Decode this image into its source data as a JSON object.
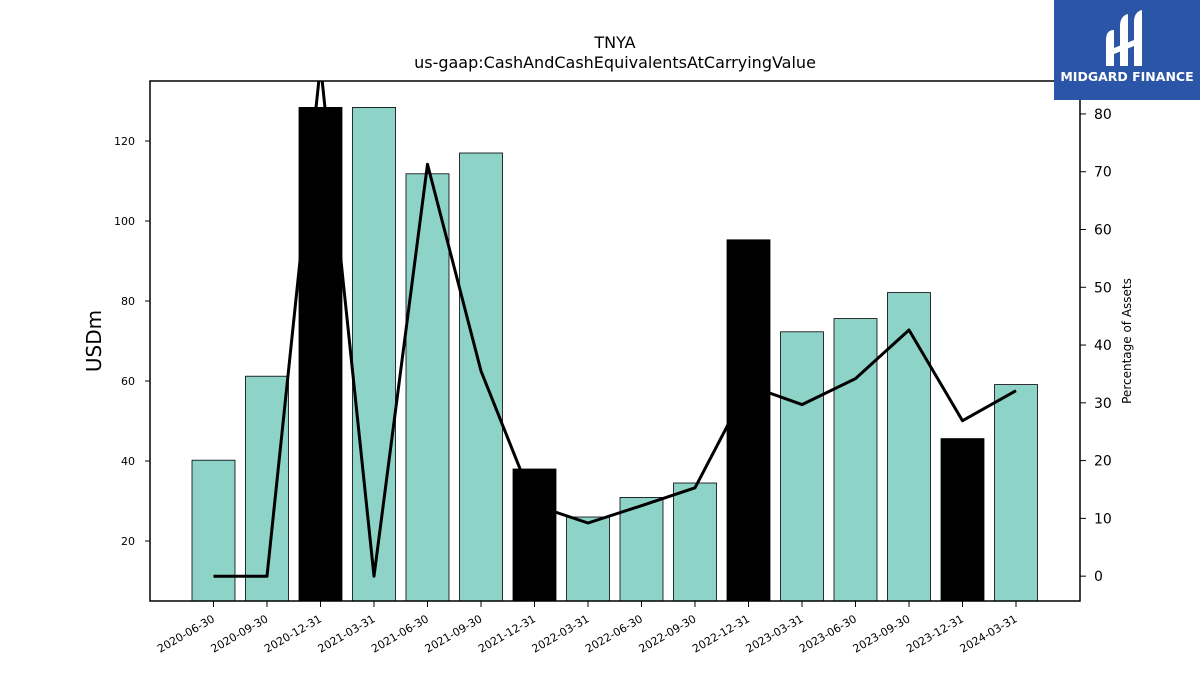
{
  "chart_data": {
    "type": "bar",
    "title": "TNYA",
    "subtitle": "us-gaap:CashAndCashEquivalentsAtCarryingValue",
    "ylabel": "USDm",
    "y2label": "Percentage of Assets",
    "categories": [
      "2020-06-30",
      "2020-09-30",
      "2020-12-31",
      "2021-03-31",
      "2021-06-30",
      "2021-09-30",
      "2021-12-31",
      "2022-03-31",
      "2022-06-30",
      "2022-09-30",
      "2022-12-31",
      "2023-03-31",
      "2023-06-30",
      "2023-09-30",
      "2023-12-31",
      "2024-03-31"
    ],
    "series": [
      {
        "type": "bar",
        "values": [
          40.2,
          61.2,
          128.4,
          128.4,
          111.8,
          117.0,
          38.0,
          26.0,
          30.9,
          34.5,
          95.3,
          72.3,
          75.6,
          82.1,
          45.6,
          59.1
        ],
        "highlight": [
          false,
          false,
          true,
          false,
          false,
          false,
          true,
          false,
          false,
          false,
          true,
          false,
          false,
          false,
          true,
          false
        ],
        "color": "#8dd3c7",
        "highlight_color": "#000000"
      },
      {
        "type": "line",
        "axis": "right",
        "values": [
          0,
          0,
          88.5,
          0,
          71.3,
          35.5,
          12.3,
          9.2,
          12.2,
          15.3,
          33.0,
          29.7,
          34.2,
          42.6,
          26.9,
          32.1
        ],
        "color": "#000000"
      }
    ],
    "ylim": [
      5,
      135
    ],
    "yticks": [
      20,
      40,
      60,
      80,
      100,
      120
    ],
    "y2lim": [
      -4.3,
      85.7
    ],
    "y2ticks": [
      0,
      10,
      20,
      30,
      40,
      50,
      60,
      70,
      80
    ],
    "grid": false
  },
  "logo": {
    "text": "MIDGARD FINANCE",
    "bg_color": "#2b55a6"
  }
}
